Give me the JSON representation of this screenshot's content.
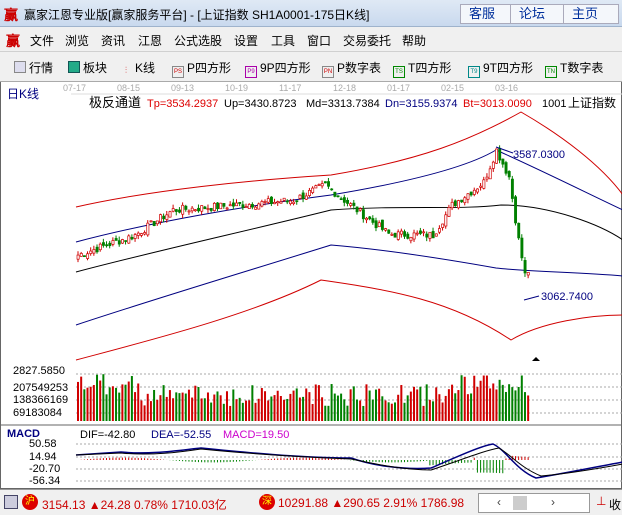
{
  "window": {
    "logo": "赢",
    "title": "赢家江恩专业版[赢家服务平台] - [上证指数  SH1A0001-175日K线]",
    "buttons": [
      "客服",
      "论坛",
      "主页"
    ]
  },
  "menu": {
    "logo": "赢",
    "items": [
      "文件",
      "浏览",
      "资讯",
      "江恩",
      "公式选股",
      "设置",
      "工具",
      "窗口",
      "交易委托",
      "帮助"
    ]
  },
  "toolbar": {
    "items": [
      {
        "label": "行情",
        "icon": "table-icon"
      },
      {
        "label": "板块",
        "icon": "blocks-icon"
      },
      {
        "label": "K线",
        "icon": "candlestick-icon"
      },
      {
        "label": "P四方形",
        "icon": "PS"
      },
      {
        "label": "9P四方形",
        "icon": "P9"
      },
      {
        "label": "P数字表",
        "icon": "PN"
      },
      {
        "label": "T四方形",
        "icon": "TS"
      },
      {
        "label": "9T四方形",
        "icon": "T9"
      },
      {
        "label": "T数字表",
        "icon": "TN"
      }
    ]
  },
  "chart": {
    "period_label": "日K线",
    "dates": [
      "07-17",
      "08-15",
      "09-13",
      "10-19",
      "11-17",
      "12-18",
      "01-17",
      "02-15",
      "03-16"
    ],
    "indicator_name": "极反通道",
    "indicator": {
      "tp": "Tp=3534.2937",
      "up": "Up=3430.8723",
      "md": "Md=3313.7384",
      "dn": "Dn=3155.9374",
      "bt": "Bt=3013.0090"
    },
    "code_fragment": "1001",
    "symbol": "上证指数",
    "high_label": "3587.0300",
    "low_label": "3062.7400",
    "price_axis_bottom": "2827.5850",
    "volume_ticks": [
      "207549253",
      "138366169",
      "69183084"
    ],
    "macd": {
      "name": "MACD",
      "dif": "DIF=-42.80",
      "dea": "DEA=-52.55",
      "macd": "MACD=19.50",
      "ticks": [
        "50.58",
        "14.94",
        "-20.70",
        "-56.34"
      ]
    },
    "close_keypoints": [
      [
        0,
        3213
      ],
      [
        18,
        3286
      ],
      [
        30,
        3378
      ],
      [
        50,
        3396
      ],
      [
        68,
        3414
      ],
      [
        78,
        3470
      ],
      [
        86,
        3396
      ],
      [
        98,
        3290
      ],
      [
        112,
        3286
      ],
      [
        118,
        3396
      ],
      [
        128,
        3480
      ],
      [
        132,
        3598
      ],
      [
        136,
        3500
      ],
      [
        139,
        3268
      ],
      [
        141,
        3140
      ],
      [
        142,
        3154
      ]
    ],
    "colors": {
      "up": "#d00000",
      "down": "#008000",
      "channel_outer": "#d00000",
      "channel_inner": "#000080",
      "mid": "#000000"
    }
  },
  "status": {
    "sh_icon": "沪",
    "sh": "3154.13 ▲24.28 0.78% 1710.03亿",
    "sz_icon": "深",
    "sz": "10291.88 ▲290.65 2.91% 1786.98",
    "recv": "收"
  }
}
